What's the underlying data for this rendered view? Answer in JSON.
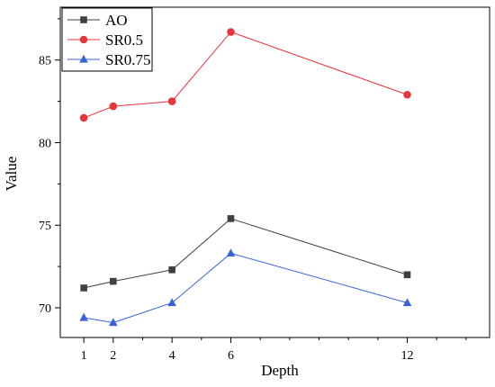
{
  "chart_data": {
    "type": "line",
    "xlabel": "Depth",
    "ylabel": "Value",
    "xlim": [
      0.2,
      14.8
    ],
    "ylim": [
      68.2,
      88.2
    ],
    "x_ticks": [
      1,
      2,
      4,
      6,
      12
    ],
    "x_minor_ticks": [
      3,
      5,
      7,
      8,
      9,
      10,
      11,
      13,
      14
    ],
    "y_ticks": [
      70,
      75,
      80,
      85
    ],
    "grid": false,
    "legend_position": "top-left",
    "series": [
      {
        "name": "AO",
        "marker": "square",
        "color": "#404040",
        "x": [
          1,
          2,
          4,
          6,
          12
        ],
        "y": [
          71.2,
          71.6,
          72.3,
          75.4,
          72.0
        ]
      },
      {
        "name": "SR0.5",
        "marker": "circle",
        "color": "#e8353b",
        "x": [
          1,
          2,
          4,
          6,
          12
        ],
        "y": [
          81.5,
          82.2,
          82.5,
          86.7,
          82.9
        ]
      },
      {
        "name": "SR0.75",
        "marker": "triangle",
        "color": "#3a62d9",
        "x": [
          1,
          2,
          4,
          6,
          12
        ],
        "y": [
          69.4,
          69.1,
          70.3,
          73.3,
          70.3
        ]
      }
    ]
  }
}
